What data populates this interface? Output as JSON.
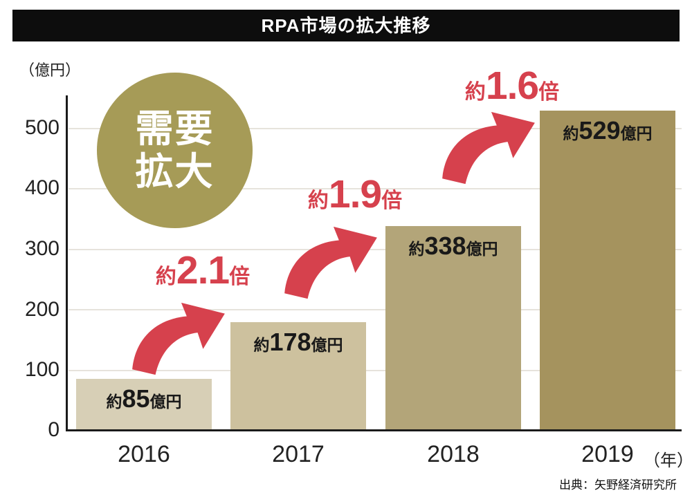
{
  "title": "RPA市場の拡大推移",
  "y_axis": {
    "unit": "（億円）",
    "ticks": [
      "500",
      "400",
      "300",
      "200",
      "100",
      "0"
    ]
  },
  "x_axis": {
    "unit": "（年）",
    "years": [
      "2016",
      "2017",
      "2018",
      "2019"
    ]
  },
  "bars": [
    {
      "prefix": "約",
      "value": "85",
      "suffix": "億円"
    },
    {
      "prefix": "約",
      "value": "178",
      "suffix": "億円"
    },
    {
      "prefix": "約",
      "value": "338",
      "suffix": "億円"
    },
    {
      "prefix": "約",
      "value": "529",
      "suffix": "億円"
    }
  ],
  "multipliers": [
    {
      "prefix": "約",
      "value": "2.1",
      "suffix": "倍"
    },
    {
      "prefix": "約",
      "value": "1.9",
      "suffix": "倍"
    },
    {
      "prefix": "約",
      "value": "1.6",
      "suffix": "倍"
    }
  ],
  "badge": {
    "line1": "需要",
    "line2": "拡大"
  },
  "source": "出典：矢野経済研究所",
  "colors": {
    "banner": "#0d0d0d",
    "arrow": "#d6414d",
    "circle": "#a69b57",
    "bars": [
      "#d7cfb6",
      "#cdc19e",
      "#b3a579",
      "#a5935e"
    ]
  },
  "chart_data": {
    "type": "bar",
    "title": "RPA市場の拡大推移",
    "categories": [
      "2016",
      "2017",
      "2018",
      "2019"
    ],
    "values": [
      85,
      178,
      338,
      529
    ],
    "value_labels": [
      "約85億円",
      "約178億円",
      "約338億円",
      "約529億円"
    ],
    "growth_multipliers": [
      "約2.1倍",
      "約1.9倍",
      "約1.6倍"
    ],
    "xlabel": "年",
    "ylabel": "億円",
    "ylim": [
      0,
      500
    ],
    "yticks": [
      0,
      100,
      200,
      300,
      400,
      500
    ],
    "grid": true,
    "legend": false,
    "annotation": "需要拡大",
    "source": "出典：矢野経済研究所"
  }
}
